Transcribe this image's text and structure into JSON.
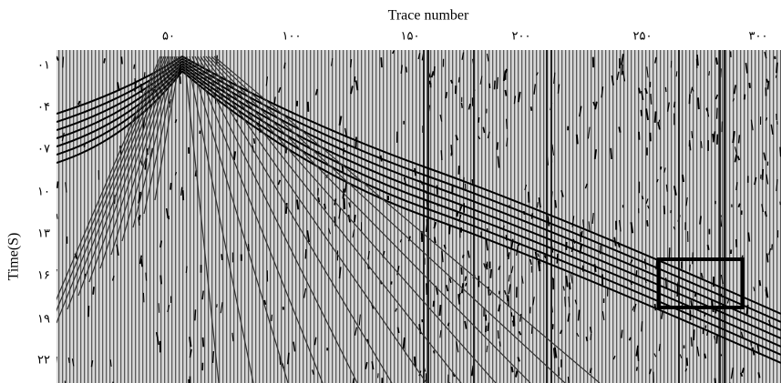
{
  "figure": {
    "x_axis": {
      "title": "Trace number",
      "tick_labels": [
        "۵۰",
        "۱۰۰",
        "۱۵۰",
        "۲۰۰",
        "۲۵۰",
        "۳۰۰"
      ]
    },
    "y_axis": {
      "title": "Time(S)",
      "tick_labels": [
        "۰۱",
        "۰۴",
        "۰۷",
        "۱۰",
        "۱۳",
        "۱۶",
        "۱۹",
        "۲۲"
      ]
    }
  }
}
